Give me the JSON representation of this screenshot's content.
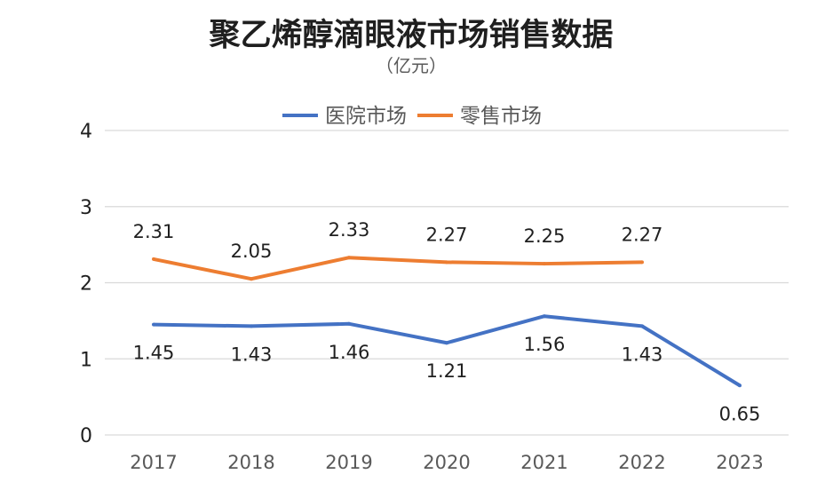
{
  "chart_data": {
    "type": "line",
    "title": "聚乙烯醇滴眼液市场销售数据",
    "subtitle": "（亿元）",
    "categories": [
      "2017",
      "2018",
      "2019",
      "2020",
      "2021",
      "2022",
      "2023"
    ],
    "series": [
      {
        "name": "医院市场",
        "color": "#4472C4",
        "values": [
          1.45,
          1.43,
          1.46,
          1.21,
          1.56,
          1.43,
          0.65
        ]
      },
      {
        "name": "零售市场",
        "color": "#ED7D31",
        "values": [
          2.31,
          2.05,
          2.33,
          2.27,
          2.25,
          2.27,
          null
        ]
      }
    ],
    "ylim": [
      0,
      4
    ],
    "yticks": [
      0,
      1,
      2,
      3,
      4
    ],
    "grid": true,
    "legend": "top"
  }
}
